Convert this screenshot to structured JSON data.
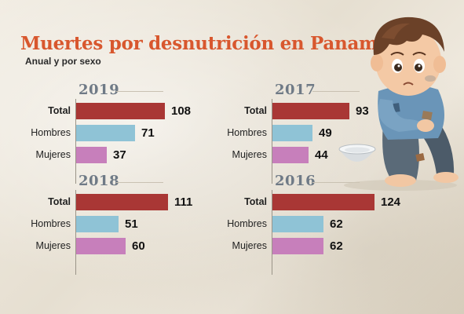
{
  "title": "Muertes por desnutrición en Panamá",
  "subtitle": "Anual y por sexo",
  "colors": {
    "title": "#d8572e",
    "Total": "#a93735",
    "Hombres": "#8fc3d6",
    "Mujeres": "#c77fbb"
  },
  "illustration_icon": "sad-child-with-empty-bowl",
  "chart_data": [
    {
      "type": "bar",
      "title": "2019",
      "categories": [
        "Total",
        "Hombres",
        "Mujeres"
      ],
      "values": [
        108,
        71,
        37
      ]
    },
    {
      "type": "bar",
      "title": "2017",
      "categories": [
        "Total",
        "Hombres",
        "Mujeres"
      ],
      "values": [
        93,
        49,
        44
      ]
    },
    {
      "type": "bar",
      "title": "2018",
      "categories": [
        "Total",
        "Hombres",
        "Mujeres"
      ],
      "values": [
        111,
        51,
        60
      ]
    },
    {
      "type": "bar",
      "title": "2016",
      "categories": [
        "Total",
        "Hombres",
        "Mujeres"
      ],
      "values": [
        124,
        62,
        62
      ]
    }
  ]
}
